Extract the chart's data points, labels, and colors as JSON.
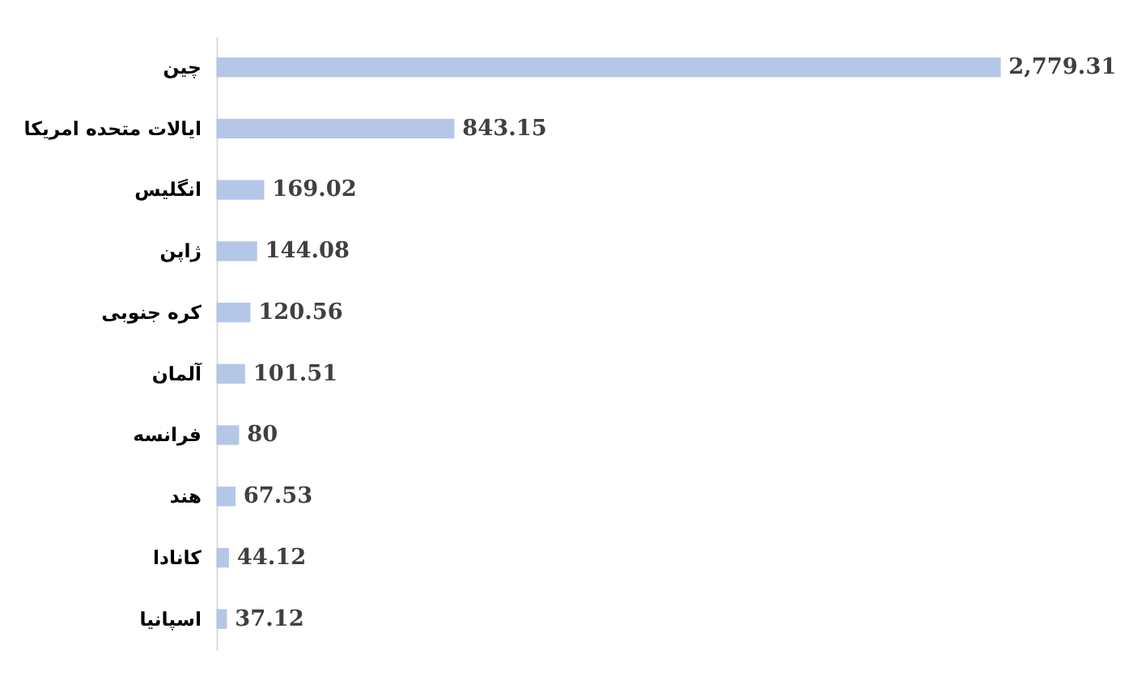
{
  "chart_data": {
    "type": "bar",
    "orientation": "horizontal",
    "categories": [
      "چین",
      "ایالات متحده امریکا",
      "انگلیس",
      "ژاپن",
      "کره جنوبی",
      "آلمان",
      "فرانسه",
      "هند",
      "کانادا",
      "اسپانیا"
    ],
    "values": [
      2779.31,
      843.15,
      169.02,
      144.08,
      120.56,
      101.51,
      80,
      67.53,
      44.12,
      37.12
    ],
    "value_labels": [
      "2,779.31",
      "843.15",
      "169.02",
      "144.08",
      "120.56",
      "101.51",
      "80",
      "67.53",
      "44.12",
      "37.12"
    ],
    "color": "#b4c7e7"
  }
}
